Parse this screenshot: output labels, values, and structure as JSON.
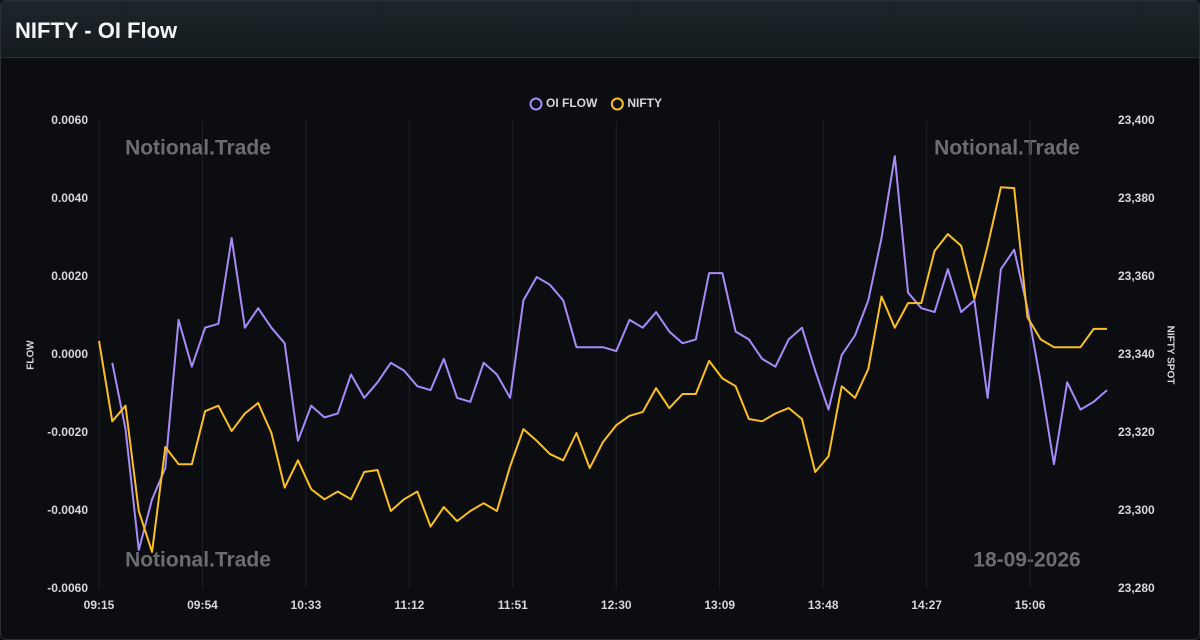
{
  "header": {
    "title": "NIFTY - OI Flow"
  },
  "watermarks": [
    "Notional.Trade",
    "Notional.Trade",
    "Notional.Trade",
    "18-09-2026"
  ],
  "chart_data": {
    "type": "line",
    "ylabel": "FLOW",
    "y2label": "NIFTY SPOT",
    "legend": "top",
    "grid": true,
    "x": [
      "09:15",
      "09:20",
      "09:25",
      "09:30",
      "09:35",
      "09:40",
      "09:45",
      "09:50",
      "09:55",
      "10:00",
      "10:05",
      "10:10",
      "10:15",
      "10:20",
      "10:25",
      "10:30",
      "10:35",
      "10:40",
      "10:45",
      "10:50",
      "10:55",
      "11:00",
      "11:05",
      "11:10",
      "11:15",
      "11:20",
      "11:25",
      "11:30",
      "11:35",
      "11:40",
      "11:45",
      "11:50",
      "11:55",
      "12:00",
      "12:05",
      "12:10",
      "12:15",
      "12:20",
      "12:25",
      "12:30",
      "12:35",
      "12:40",
      "12:45",
      "12:50",
      "12:55",
      "13:00",
      "13:05",
      "13:10",
      "13:15",
      "13:20",
      "13:25",
      "13:30",
      "13:35",
      "13:40",
      "13:45",
      "13:50",
      "13:55",
      "14:00",
      "14:05",
      "14:10",
      "14:15",
      "14:20",
      "14:25",
      "14:30",
      "14:35",
      "14:40",
      "14:45",
      "14:50",
      "14:55",
      "15:00",
      "15:05",
      "15:10",
      "15:15",
      "15:20",
      "15:25",
      "15:30",
      "15:35"
    ],
    "xlim": [
      "09:15",
      "15:35"
    ],
    "xticks": [
      "09:15",
      "09:54",
      "10:33",
      "11:12",
      "11:51",
      "12:30",
      "13:09",
      "13:48",
      "14:27",
      "15:06"
    ],
    "ylim": [
      -0.006,
      0.006
    ],
    "yticks": [
      {
        "value": -0.006,
        "label": "-0.0060"
      },
      {
        "value": -0.004,
        "label": "-0.0040"
      },
      {
        "value": -0.002,
        "label": "-0.0020"
      },
      {
        "value": 0,
        "label": "0.0000"
      },
      {
        "value": 0.002,
        "label": "0.0020"
      },
      {
        "value": 0.004,
        "label": "0.0040"
      },
      {
        "value": 0.006,
        "label": "0.0060"
      }
    ],
    "y2lim": [
      23280,
      23400
    ],
    "y2ticks": [
      {
        "value": 23280,
        "label": "23,280"
      },
      {
        "value": 23300,
        "label": "23,300"
      },
      {
        "value": 23320,
        "label": "23,320"
      },
      {
        "value": 23340,
        "label": "23,340"
      },
      {
        "value": 23360,
        "label": "23,360"
      },
      {
        "value": 23380,
        "label": "23,380"
      },
      {
        "value": 23400,
        "label": "23,400"
      }
    ],
    "series": [
      {
        "name": "OI FLOW",
        "color": "#a78bfa",
        "values": [
          null,
          -0.0002,
          -0.0019,
          -0.005,
          -0.0037,
          -0.0029,
          0.0009,
          -0.0003,
          0.0007,
          0.0008,
          0.003,
          0.0007,
          0.0012,
          0.0007,
          0.0003,
          -0.0022,
          -0.0013,
          -0.0016,
          -0.0015,
          -0.0005,
          -0.0011,
          -0.0007,
          -0.0002,
          -0.0004,
          -0.0008,
          -0.0009,
          -0.0001,
          -0.0011,
          -0.0012,
          -0.0002,
          -0.0005,
          -0.0011,
          0.0014,
          0.002,
          0.0018,
          0.0014,
          0.0002,
          0.0002,
          0.0002,
          0.0001,
          0.0009,
          0.0007,
          0.0011,
          0.0006,
          0.0003,
          0.0004,
          0.0021,
          0.0021,
          0.0006,
          0.0004,
          -0.0001,
          -0.0003,
          0.0004,
          0.0007,
          -0.0004,
          -0.0014,
          0,
          0.0005,
          0.0014,
          0.003,
          0.0051,
          0.0016,
          0.0012,
          0.0011,
          0.0022,
          0.0011,
          0.0014,
          -0.0011,
          0.0022,
          0.0027,
          0.0012,
          -0.0007,
          -0.0028,
          -0.0007,
          -0.0014,
          -0.0012,
          -0.0009
        ]
      },
      {
        "name": "NIFTY",
        "color": "#fbbf24",
        "axis": "y2",
        "values": [
          23343.6,
          23323,
          23327,
          23300,
          23289.5,
          23316.4,
          23312,
          23312,
          23325.6,
          23327,
          23320.5,
          23325,
          23327.7,
          23320,
          23306,
          23313,
          23305.6,
          23303,
          23305,
          23303,
          23310,
          23310.5,
          23300,
          23303,
          23305,
          23296,
          23301,
          23297.4,
          23300,
          23302,
          23300,
          23311.5,
          23321,
          23318,
          23314.6,
          23313,
          23320,
          23311,
          23317.7,
          23322,
          23324.4,
          23325.4,
          23331.5,
          23326.4,
          23330,
          23330,
          23338.5,
          23334,
          23332,
          23323.6,
          23323,
          23325,
          23326.4,
          23323.6,
          23310,
          23314,
          23332,
          23329,
          23336.4,
          23355,
          23347,
          23353.3,
          23353.3,
          23366.7,
          23371,
          23368,
          23354.4,
          23368,
          23383,
          23382.8,
          23349.7,
          23344,
          23342,
          23342,
          23342,
          23346.7,
          23346.7
        ]
      }
    ]
  }
}
